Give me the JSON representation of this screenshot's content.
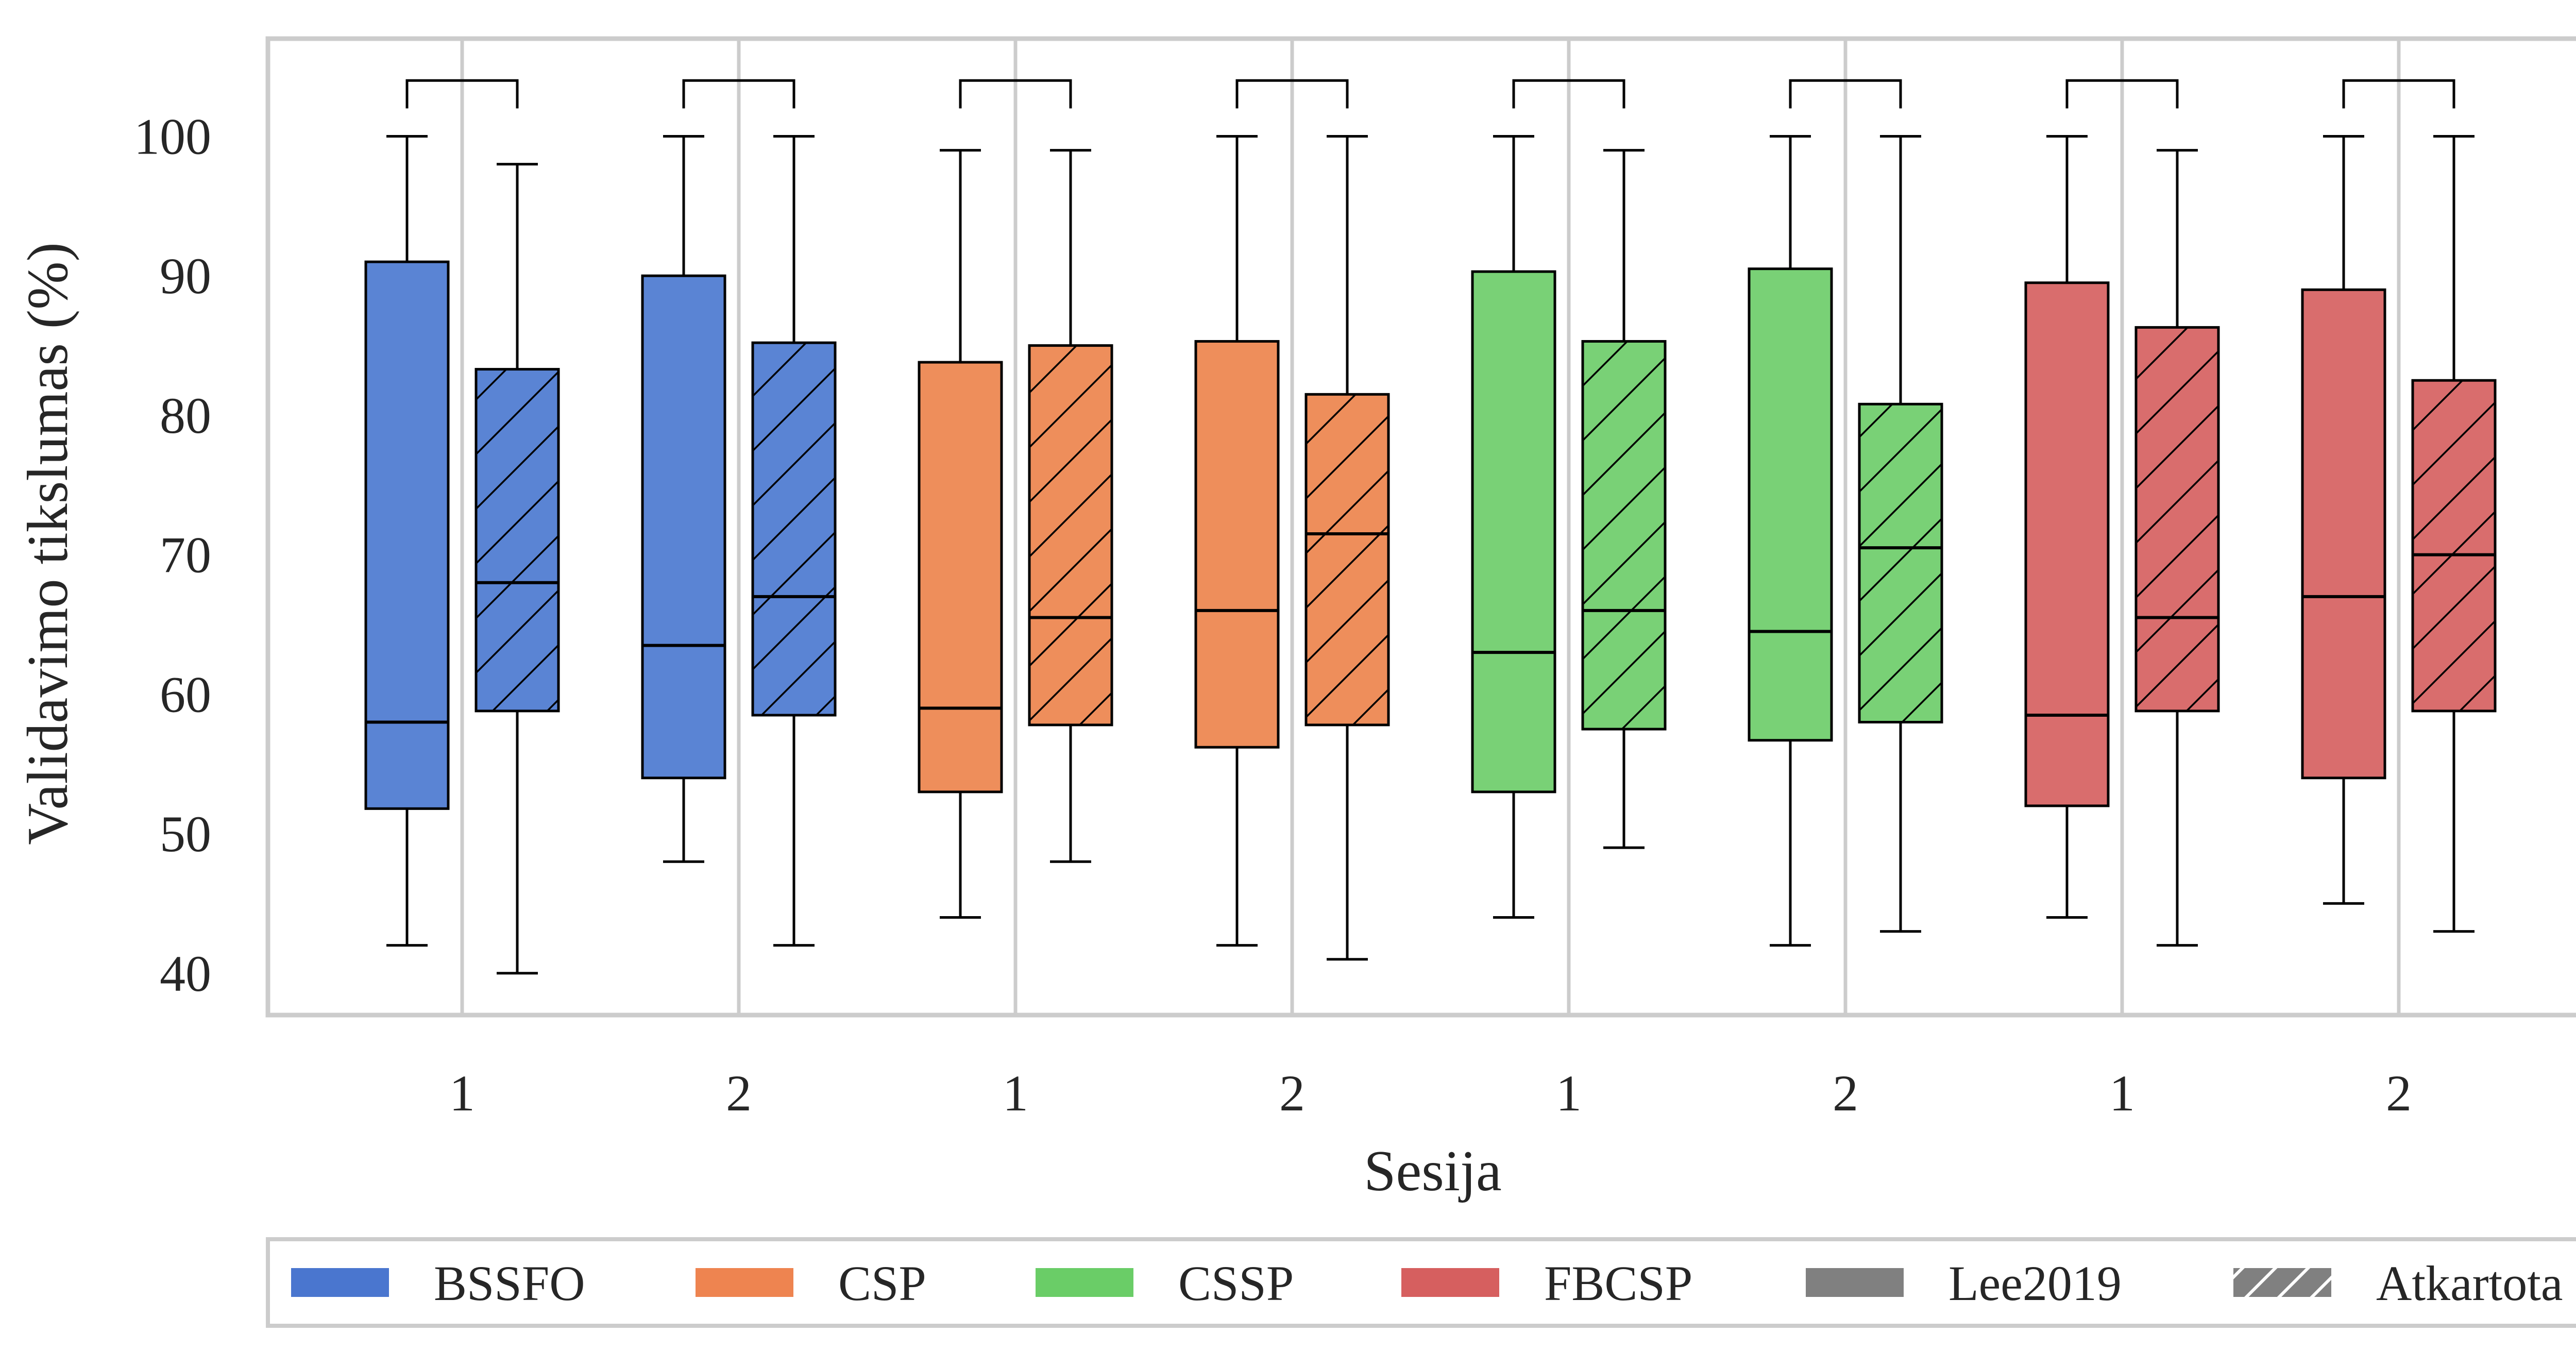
{
  "chart_data": {
    "type": "boxplot",
    "xlabel": "Sesija",
    "ylabel": "Validavimo tikslumas (%)",
    "ylim": [
      37,
      107
    ],
    "yticks": [
      40,
      50,
      60,
      70,
      80,
      90,
      100
    ],
    "grid": "vertical",
    "categories": [
      "1",
      "2",
      "1",
      "2",
      "1",
      "2",
      "1",
      "2"
    ],
    "groups": [
      {
        "method": "BSSFO",
        "color": "#5a84d4",
        "sessions": [
          {
            "session": "1",
            "original": {
              "whisker_low": 42,
              "q1": 51.8,
              "median": 58,
              "q3": 91,
              "whisker_high": 100
            },
            "replicated": {
              "whisker_low": 40,
              "q1": 58.8,
              "median": 68,
              "q3": 83.3,
              "whisker_high": 98
            }
          },
          {
            "session": "2",
            "original": {
              "whisker_low": 48,
              "q1": 54,
              "median": 63.5,
              "q3": 90,
              "whisker_high": 100
            },
            "replicated": {
              "whisker_low": 42,
              "q1": 58.5,
              "median": 67,
              "q3": 85.2,
              "whisker_high": 100
            }
          }
        ]
      },
      {
        "method": "CSP",
        "color": "#ee8e5b",
        "sessions": [
          {
            "session": "1",
            "original": {
              "whisker_low": 44,
              "q1": 53,
              "median": 59,
              "q3": 83.8,
              "whisker_high": 99
            },
            "replicated": {
              "whisker_low": 48,
              "q1": 57.8,
              "median": 65.5,
              "q3": 85,
              "whisker_high": 99
            }
          },
          {
            "session": "2",
            "original": {
              "whisker_low": 42,
              "q1": 56.2,
              "median": 66,
              "q3": 85.3,
              "whisker_high": 100
            },
            "replicated": {
              "whisker_low": 41,
              "q1": 57.8,
              "median": 71.5,
              "q3": 81.5,
              "whisker_high": 100
            }
          }
        ]
      },
      {
        "method": "CSSP",
        "color": "#79d176",
        "sessions": [
          {
            "session": "1",
            "original": {
              "whisker_low": 44,
              "q1": 53,
              "median": 63,
              "q3": 90.3,
              "whisker_high": 100
            },
            "replicated": {
              "whisker_low": 49,
              "q1": 57.5,
              "median": 66,
              "q3": 85.3,
              "whisker_high": 99
            }
          },
          {
            "session": "2",
            "original": {
              "whisker_low": 42,
              "q1": 56.7,
              "median": 64.5,
              "q3": 90.5,
              "whisker_high": 100
            },
            "replicated": {
              "whisker_low": 43,
              "q1": 58,
              "median": 70.5,
              "q3": 80.8,
              "whisker_high": 100
            }
          }
        ]
      },
      {
        "method": "FBCSP",
        "color": "#d96d6d",
        "sessions": [
          {
            "session": "1",
            "original": {
              "whisker_low": 44,
              "q1": 52,
              "median": 58.5,
              "q3": 89.5,
              "whisker_high": 100
            },
            "replicated": {
              "whisker_low": 42,
              "q1": 58.8,
              "median": 65.5,
              "q3": 86.3,
              "whisker_high": 99
            }
          },
          {
            "session": "2",
            "original": {
              "whisker_low": 45,
              "q1": 54,
              "median": 67,
              "q3": 89,
              "whisker_high": 100
            },
            "replicated": {
              "whisker_low": 43,
              "q1": 58.8,
              "median": 70,
              "q3": 82.5,
              "whisker_high": 100
            }
          }
        ]
      }
    ],
    "bracket_top": 104,
    "bracket_bottom": 102,
    "legend": {
      "position": "bottom",
      "items": [
        {
          "label": "BSSFO",
          "color": "#4a76cf",
          "pattern": "solid"
        },
        {
          "label": "CSP",
          "color": "#ee8450",
          "pattern": "solid"
        },
        {
          "label": "CSSP",
          "color": "#6acd67",
          "pattern": "solid"
        },
        {
          "label": "FBCSP",
          "color": "#d65f5f",
          "pattern": "solid"
        },
        {
          "label": "Lee2019",
          "color": "#808080",
          "pattern": "solid"
        },
        {
          "label": "Atkartota",
          "color": "#808080",
          "pattern": "hatch"
        }
      ]
    }
  }
}
